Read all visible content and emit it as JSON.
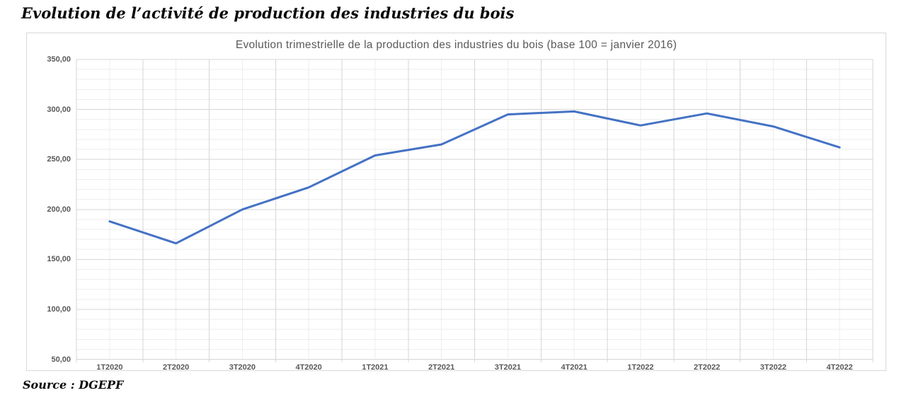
{
  "page": {
    "title": "Evolution de l’activité de production des industries du bois",
    "source": "Source : DGEPF"
  },
  "chart_data": {
    "type": "line",
    "title": "Evolution trimestrielle de la production des industries du bois (base 100 = janvier 2016)",
    "categories": [
      "1T2020",
      "2T2020",
      "3T2020",
      "4T2020",
      "1T2021",
      "2T2021",
      "3T2021",
      "4T2021",
      "1T2022",
      "2T2022",
      "3T2022",
      "4T2022"
    ],
    "values": [
      188,
      166,
      200,
      222,
      254,
      265,
      295,
      298,
      284,
      296,
      283,
      262
    ],
    "xlabel": "",
    "ylabel": "",
    "ylim": [
      50,
      350
    ],
    "ytick_step": 50,
    "minor_ytick_step": 10,
    "ytick_labels": [
      "350,00",
      "300,00",
      "250,00",
      "200,00",
      "150,00",
      "100,00",
      "50,00"
    ],
    "grid": {
      "major": true,
      "minor": true
    },
    "legend": "none",
    "colors": {
      "line": "#4472C4",
      "major_grid": "#d6d6d6",
      "minor_grid": "#eeeeee",
      "axis_text": "#595959",
      "title_text": "#595959",
      "frame_border": "#d9d9d9"
    }
  }
}
